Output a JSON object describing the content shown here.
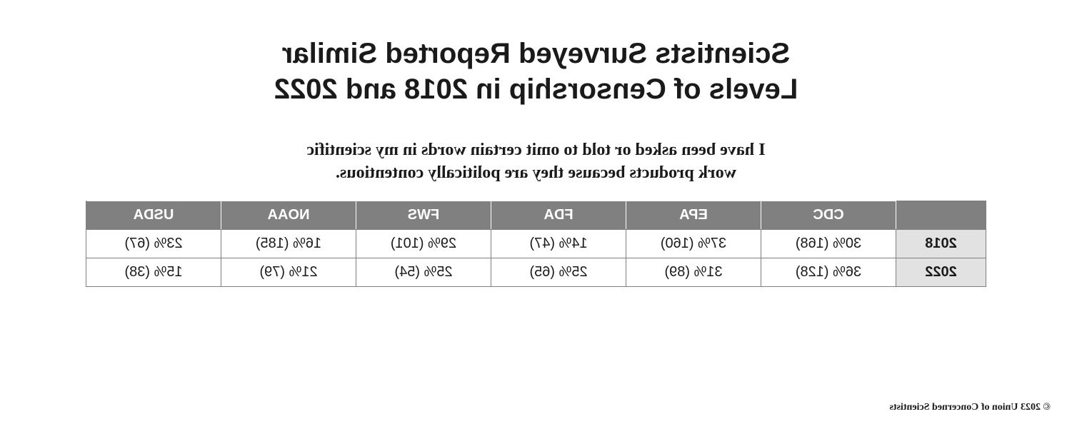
{
  "title_line1": "Scientists Surveyed Reported Similar",
  "title_line2": "Levels of Censorship in 2018 and 2022",
  "subtitle_line1": "I have been asked or told to omit certain words in my scientific",
  "subtitle_line2": "work products because they are politically contentious.",
  "table": {
    "type": "table",
    "header_bg": "#808080",
    "header_text_color": "#ffffff",
    "border_color": "#808080",
    "rowhead_bg": "#e2e2e2",
    "cell_fontsize": 20,
    "columns": [
      "CDC",
      "EPA",
      "FDA",
      "FWS",
      "NOAA",
      "USDA"
    ],
    "rows": [
      {
        "year": "2018",
        "cells": [
          "30% (168)",
          "37% (160)",
          "14% (47)",
          "29% (101)",
          "16% (185)",
          "23% (67)"
        ]
      },
      {
        "year": "2022",
        "cells": [
          "36% (128)",
          "31% (89)",
          "25% (65)",
          "25% (54)",
          "21% (79)",
          "15% (38)"
        ]
      }
    ]
  },
  "footer": "© 2023 Union of Concerned Scientists"
}
